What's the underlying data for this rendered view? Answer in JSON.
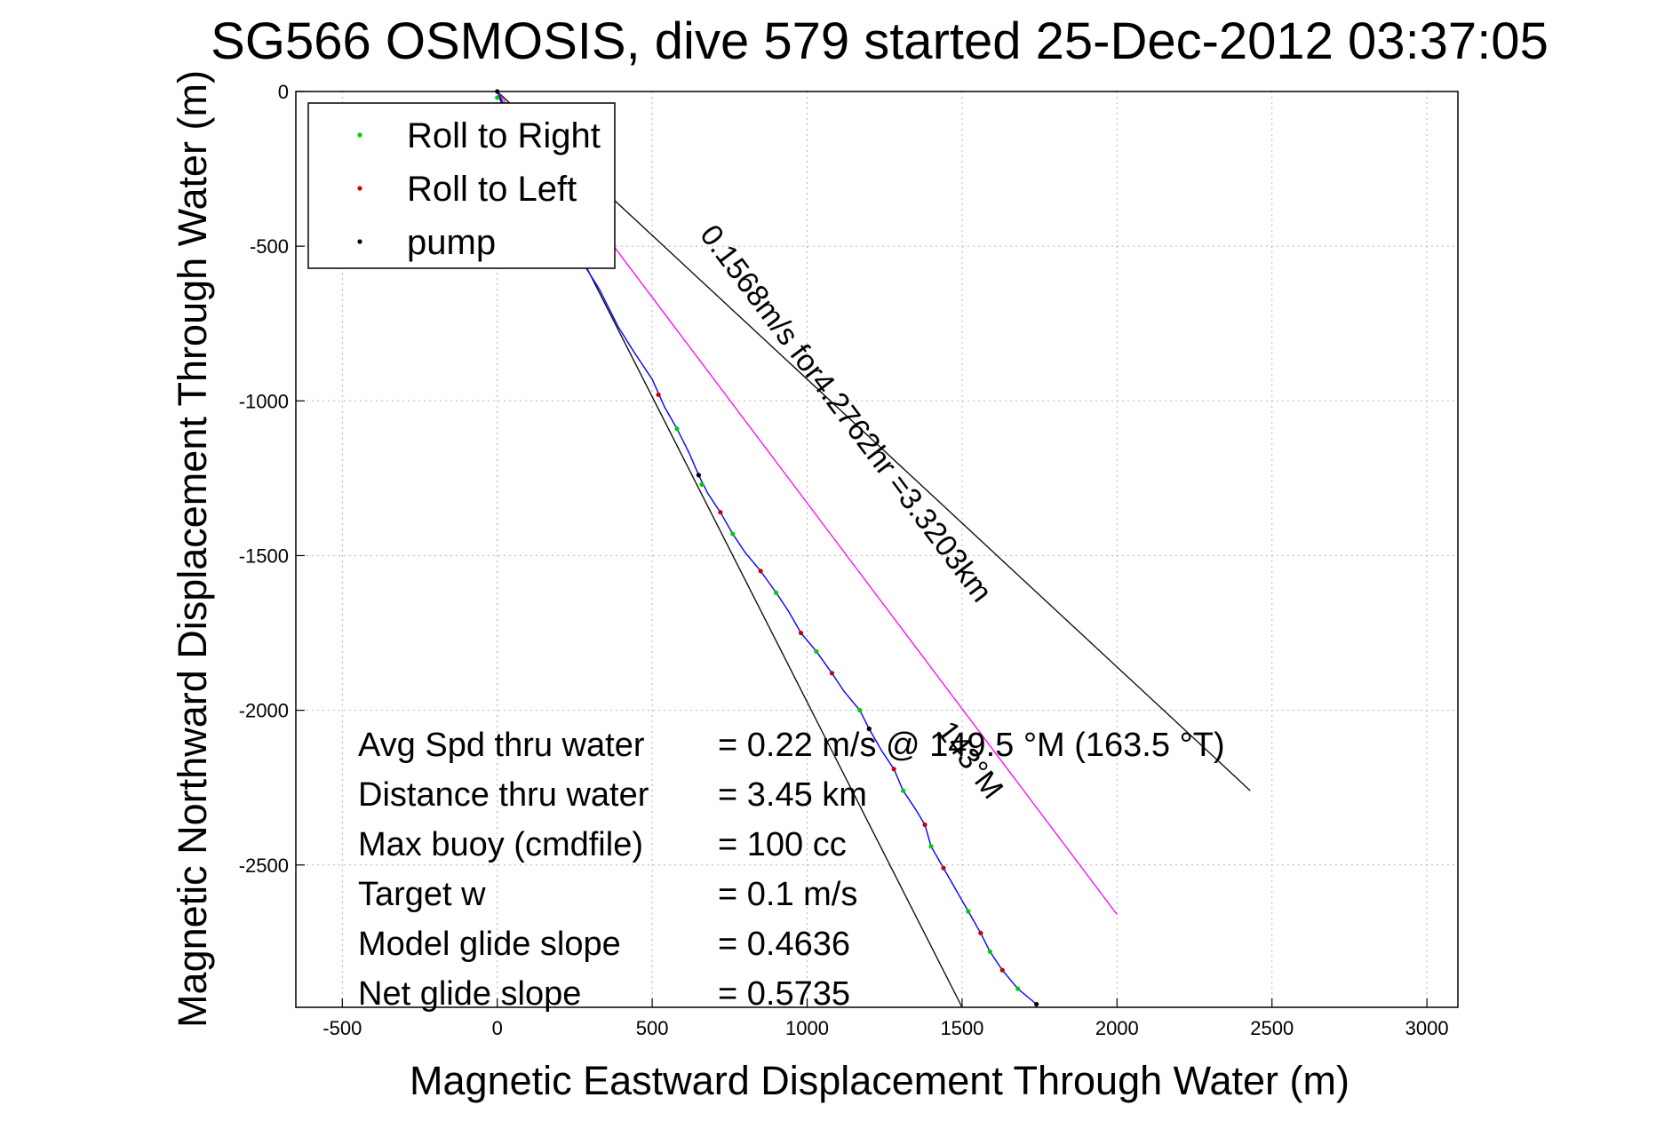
{
  "chart_data": {
    "type": "line",
    "title": "SG566 OSMOSIS, dive 579 started 25-Dec-2012 03:37:05",
    "xlabel": "Magnetic Eastward Displacement Through Water (m)",
    "ylabel": "Magnetic Northward Displacement Through Water (m)",
    "xlim": [
      -650,
      3100
    ],
    "ylim": [
      -2960,
      0
    ],
    "xticks": [
      -500,
      0,
      500,
      1000,
      1500,
      2000,
      2500,
      3000
    ],
    "yticks": [
      0,
      -500,
      -1000,
      -1500,
      -2000,
      -2500
    ],
    "xtick_labels": [
      "-500",
      "0",
      "500",
      "1000",
      "1500",
      "2000",
      "2500",
      "3000"
    ],
    "ytick_labels": [
      "0",
      "-500",
      "-1000",
      "-1500",
      "-2000",
      "-2500"
    ],
    "grid": true,
    "legend_position": "top-left",
    "legend": [
      {
        "label": "Roll to Right",
        "color": "#00cc00"
      },
      {
        "label": "Roll to Left",
        "color": "#cc0000"
      },
      {
        "label": "pump",
        "color": "#000000"
      }
    ],
    "track": {
      "color": "#0000ff",
      "points": [
        [
          0,
          0
        ],
        [
          40,
          -110
        ],
        [
          110,
          -260
        ],
        [
          200,
          -400
        ],
        [
          280,
          -560
        ],
        [
          330,
          -640
        ],
        [
          390,
          -760
        ],
        [
          440,
          -840
        ],
        [
          500,
          -930
        ],
        [
          540,
          -1020
        ],
        [
          580,
          -1090
        ],
        [
          620,
          -1170
        ],
        [
          650,
          -1240
        ],
        [
          680,
          -1300
        ],
        [
          720,
          -1360
        ],
        [
          760,
          -1430
        ],
        [
          800,
          -1490
        ],
        [
          850,
          -1550
        ],
        [
          900,
          -1620
        ],
        [
          940,
          -1680
        ],
        [
          980,
          -1750
        ],
        [
          1030,
          -1810
        ],
        [
          1080,
          -1880
        ],
        [
          1120,
          -1940
        ],
        [
          1170,
          -2000
        ],
        [
          1200,
          -2060
        ],
        [
          1240,
          -2130
        ],
        [
          1280,
          -2190
        ],
        [
          1310,
          -2260
        ],
        [
          1350,
          -2320
        ],
        [
          1380,
          -2370
        ],
        [
          1400,
          -2440
        ],
        [
          1440,
          -2510
        ],
        [
          1480,
          -2580
        ],
        [
          1520,
          -2650
        ],
        [
          1560,
          -2720
        ],
        [
          1590,
          -2780
        ],
        [
          1630,
          -2840
        ],
        [
          1680,
          -2900
        ],
        [
          1740,
          -2950
        ]
      ]
    },
    "markers": {
      "roll_right": [
        [
          0,
          -20
        ],
        [
          580,
          -1090
        ],
        [
          660,
          -1270
        ],
        [
          760,
          -1430
        ],
        [
          900,
          -1620
        ],
        [
          1030,
          -1810
        ],
        [
          1170,
          -2000
        ],
        [
          1310,
          -2260
        ],
        [
          1400,
          -2440
        ],
        [
          1520,
          -2650
        ],
        [
          1590,
          -2780
        ],
        [
          1680,
          -2900
        ]
      ],
      "roll_left": [
        [
          40,
          -110
        ],
        [
          520,
          -980
        ],
        [
          720,
          -1360
        ],
        [
          850,
          -1550
        ],
        [
          980,
          -1750
        ],
        [
          1080,
          -1880
        ],
        [
          1200,
          -2060
        ],
        [
          1280,
          -2190
        ],
        [
          1380,
          -2370
        ],
        [
          1440,
          -2510
        ],
        [
          1560,
          -2720
        ],
        [
          1630,
          -2840
        ]
      ],
      "pump": [
        [
          0,
          0
        ],
        [
          650,
          -1240
        ],
        [
          1200,
          -2060
        ],
        [
          1740,
          -2950
        ]
      ]
    },
    "reference_lines": [
      {
        "color": "#000000",
        "points": [
          [
            0,
            0
          ],
          [
            2430,
            -2260
          ]
        ]
      },
      {
        "color": "#000000",
        "points": [
          [
            0,
            0
          ],
          [
            1500,
            -2960
          ]
        ]
      },
      {
        "color": "#ff00ff",
        "points": [
          [
            0,
            0
          ],
          [
            2000,
            -2660
          ]
        ]
      }
    ],
    "rotated_labels": [
      {
        "text": "0.1568m/s for4.2762hr =3.3203km",
        "x": 1100,
        "y": -1060,
        "angle_deg": 53
      },
      {
        "text": "143°M",
        "x": 1500,
        "y": -2180,
        "angle_deg": 53
      }
    ],
    "stats": [
      {
        "label": "Avg Spd thru water",
        "value": "=  0.22 m/s @ 149.5 °M (163.5 °T)"
      },
      {
        "label": "Distance thru water",
        "value": "=  3.45 km"
      },
      {
        "label": "Max buoy (cmdfile)",
        "value": "= 100 cc"
      },
      {
        "label": "Target w",
        "value": "= 0.1 m/s"
      },
      {
        "label": "Model glide slope",
        "value": "= 0.4636"
      },
      {
        "label": "Net glide slope",
        "value": "= 0.5735"
      }
    ]
  }
}
